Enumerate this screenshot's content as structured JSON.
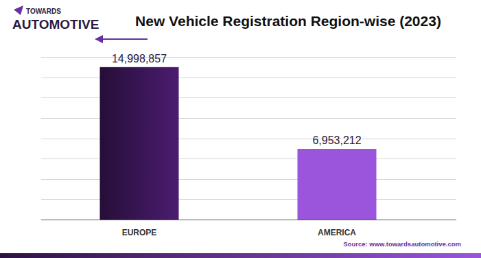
{
  "chart_data": {
    "type": "bar",
    "title": "New Vehicle Registration Region-wise (2023)",
    "logo": [
      "TOWARDS",
      "AUTOMOTIVE"
    ],
    "source": "Source: www.towardsautomotive.com",
    "categories": [
      "EUROPE",
      "AMERICA"
    ],
    "values": [
      14998857,
      6953212
    ],
    "value_labels": [
      "14,998,857",
      "6,953,212"
    ],
    "colors": [
      "#4b1c70",
      "#9b55dc"
    ],
    "ylim": [
      0,
      16000000
    ],
    "yticks": [
      0,
      2000000,
      4000000,
      6000000,
      8000000,
      10000000,
      12000000,
      14000000,
      16000000
    ],
    "grid": true,
    "tick_labels": false,
    "data_labels": true
  }
}
